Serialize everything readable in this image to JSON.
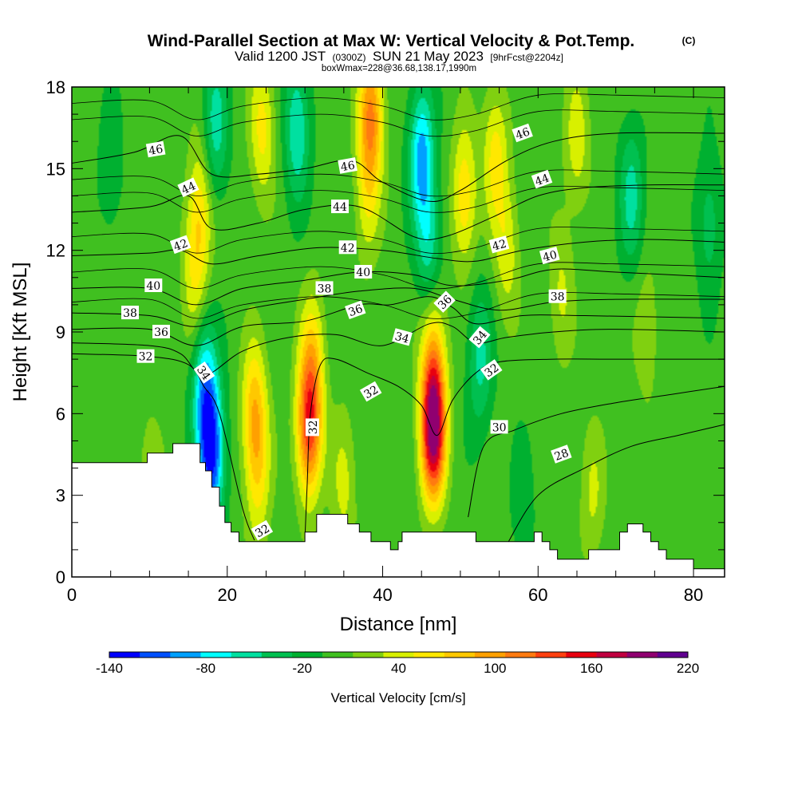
{
  "title": "Wind-Parallel Section at Max W: Vertical Velocity & Pot.Temp.",
  "copyright": "(C)",
  "subtitle_parts": {
    "valid": "Valid 1200 JST",
    "zulu": "(0300Z)",
    "date": "SUN 21 May 2023",
    "fcst": "[9hrFcst@2204z]"
  },
  "subtitle2": "boxWmax=228@36.68,138.17,1990m",
  "chart_data": {
    "type": "heatmap",
    "xlabel": "Distance [nm]",
    "ylabel": "Height [Kft MSL]",
    "xlim": [
      0,
      84
    ],
    "ylim": [
      0,
      18
    ],
    "xticks": [
      0,
      20,
      40,
      60,
      80
    ],
    "yticks": [
      0,
      3,
      6,
      9,
      12,
      15,
      18
    ],
    "colorbar": {
      "label": "Vertical Velocity [cm/s]",
      "boundaries": [
        -140,
        -120,
        -100,
        -80,
        -60,
        -40,
        -20,
        0,
        20,
        40,
        60,
        80,
        100,
        120,
        140,
        160,
        180,
        200,
        220
      ],
      "tick_labels": [
        "-140",
        "-80",
        "-20",
        "40",
        "100",
        "160",
        "220"
      ],
      "tick_values": [
        -140,
        -80,
        -20,
        40,
        100,
        160,
        220
      ],
      "colors": [
        "#0000ff",
        "#0050ff",
        "#00a0ff",
        "#00ffff",
        "#00e0a0",
        "#00c050",
        "#00b030",
        "#40c020",
        "#80d010",
        "#d8f000",
        "#ffe800",
        "#ffc800",
        "#ffa000",
        "#ff7a10",
        "#ff4010",
        "#e80010",
        "#c00040",
        "#900070",
        "#600090"
      ]
    },
    "velocity_features": [
      {
        "x": 16.5,
        "z": 13.5,
        "w": 60
      },
      {
        "x": 15.8,
        "z": 11.0,
        "w": 45
      },
      {
        "x": 18.5,
        "z": 16.5,
        "w": -60
      },
      {
        "x": 18.0,
        "z": 4.5,
        "w": -130
      },
      {
        "x": 17.0,
        "z": 7.0,
        "w": -85
      },
      {
        "x": 23.5,
        "z": 6.0,
        "w": 85
      },
      {
        "x": 24.0,
        "z": 3.5,
        "w": 45
      },
      {
        "x": 24.5,
        "z": 16.5,
        "w": 60
      },
      {
        "x": 29.0,
        "z": 16.5,
        "w": -70
      },
      {
        "x": 30.5,
        "z": 5.5,
        "w": 140
      },
      {
        "x": 31.0,
        "z": 8.0,
        "w": 60
      },
      {
        "x": 35.0,
        "z": 3.5,
        "w": 40
      },
      {
        "x": 38.5,
        "z": 17.0,
        "w": 110
      },
      {
        "x": 38.0,
        "z": 14.0,
        "w": 45
      },
      {
        "x": 45.0,
        "z": 15.5,
        "w": -95
      },
      {
        "x": 46.0,
        "z": 12.0,
        "w": -60
      },
      {
        "x": 46.5,
        "z": 5.5,
        "w": 215
      },
      {
        "x": 46.5,
        "z": 8.5,
        "w": 60
      },
      {
        "x": 52.5,
        "z": 8.0,
        "w": -55
      },
      {
        "x": 50.5,
        "z": 14.0,
        "w": 70
      },
      {
        "x": 54.5,
        "z": 15.5,
        "w": 60
      },
      {
        "x": 56.0,
        "z": 12.0,
        "w": 45
      },
      {
        "x": 63.0,
        "z": 10.5,
        "w": 35
      },
      {
        "x": 65.0,
        "z": 16.0,
        "w": 45
      },
      {
        "x": 67.0,
        "z": 3.0,
        "w": 35
      },
      {
        "x": 72.0,
        "z": 14.0,
        "w": -55
      },
      {
        "x": 74.0,
        "z": 9.0,
        "w": 30
      },
      {
        "x": 82.0,
        "z": 13.0,
        "w": -40
      },
      {
        "x": 10.0,
        "z": 3.5,
        "w": 30
      },
      {
        "x": 5.0,
        "z": 15.0,
        "w": -25
      },
      {
        "x": 58.0,
        "z": 2.5,
        "w": -20
      },
      {
        "x": 78.0,
        "z": 2.0,
        "w": 5
      }
    ],
    "terrain_kft": [
      [
        0,
        4.2
      ],
      [
        9.7,
        4.2
      ],
      [
        9.7,
        4.55
      ],
      [
        13.0,
        4.55
      ],
      [
        13.0,
        4.9
      ],
      [
        16.5,
        4.9
      ],
      [
        16.5,
        4.2
      ],
      [
        17.2,
        4.2
      ],
      [
        17.2,
        3.9
      ],
      [
        18.0,
        3.9
      ],
      [
        18.0,
        3.3
      ],
      [
        19.0,
        3.3
      ],
      [
        19.0,
        2.6
      ],
      [
        19.7,
        2.6
      ],
      [
        19.7,
        2.0
      ],
      [
        20.5,
        2.0
      ],
      [
        20.5,
        1.65
      ],
      [
        21.5,
        1.65
      ],
      [
        21.5,
        1.3
      ],
      [
        30.0,
        1.3
      ],
      [
        30.0,
        1.65
      ],
      [
        31.5,
        1.65
      ],
      [
        31.5,
        2.3
      ],
      [
        35.5,
        2.3
      ],
      [
        35.5,
        1.95
      ],
      [
        37.0,
        1.95
      ],
      [
        37.0,
        1.65
      ],
      [
        38.5,
        1.65
      ],
      [
        38.5,
        1.3
      ],
      [
        41.0,
        1.3
      ],
      [
        41.0,
        1.0
      ],
      [
        42.0,
        1.0
      ],
      [
        42.0,
        1.3
      ],
      [
        42.5,
        1.3
      ],
      [
        42.5,
        1.65
      ],
      [
        52.0,
        1.65
      ],
      [
        52.0,
        1.3
      ],
      [
        59.5,
        1.3
      ],
      [
        59.5,
        1.65
      ],
      [
        60.5,
        1.65
      ],
      [
        60.5,
        1.3
      ],
      [
        61.5,
        1.3
      ],
      [
        61.5,
        1.0
      ],
      [
        62.5,
        1.0
      ],
      [
        62.5,
        0.65
      ],
      [
        66.5,
        0.65
      ],
      [
        66.5,
        1.0
      ],
      [
        70.5,
        1.0
      ],
      [
        70.5,
        1.65
      ],
      [
        71.5,
        1.65
      ],
      [
        71.5,
        1.95
      ],
      [
        73.5,
        1.95
      ],
      [
        73.5,
        1.65
      ],
      [
        74.5,
        1.65
      ],
      [
        74.5,
        1.3
      ],
      [
        75.5,
        1.3
      ],
      [
        75.5,
        1.0
      ],
      [
        76.5,
        1.0
      ],
      [
        76.5,
        0.65
      ],
      [
        80.0,
        0.65
      ],
      [
        80.0,
        0.3
      ],
      [
        84,
        0.3
      ]
    ],
    "contours": [
      {
        "level": 28,
        "points": [
          [
            56,
            1.2
          ],
          [
            60,
            3.0
          ],
          [
            66,
            4.0
          ],
          [
            72,
            4.8
          ],
          [
            78,
            5.2
          ],
          [
            84,
            5.6
          ]
        ],
        "label": "28",
        "label_at": [
          63,
          4.5
        ],
        "angle": -20
      },
      {
        "level": 30,
        "points": [
          [
            51,
            2.2
          ],
          [
            53,
            4.8
          ],
          [
            57,
            5.4
          ],
          [
            63,
            6.0
          ],
          [
            70,
            6.4
          ],
          [
            77,
            6.7
          ],
          [
            84,
            7.0
          ]
        ],
        "label": "30",
        "label_at": [
          55,
          5.5
        ],
        "angle": 0
      },
      {
        "level": 32,
        "points": [
          [
            0,
            8.2
          ],
          [
            10,
            8.1
          ],
          [
            15,
            7.8
          ],
          [
            17,
            7.0
          ],
          [
            19,
            6.0
          ],
          [
            22,
            2.5
          ],
          [
            23.5,
            1.35
          ]
        ],
        "label": "32",
        "label_at": [
          9.5,
          8.1
        ],
        "angle": 0
      },
      {
        "level": 32,
        "points": [
          [
            30,
            1.4
          ],
          [
            30.3,
            3.5
          ],
          [
            30.7,
            6.0
          ],
          [
            32,
            7.8
          ],
          [
            34,
            8.0
          ],
          [
            38,
            7.5
          ],
          [
            42,
            7.0
          ],
          [
            45,
            6.3
          ],
          [
            47,
            5.2
          ],
          [
            49,
            6.5
          ],
          [
            52,
            7.5
          ],
          [
            55,
            7.9
          ],
          [
            62,
            8.0
          ],
          [
            70,
            8.0
          ],
          [
            84,
            8.0
          ]
        ],
        "label": "32",
        "label_at": [
          31,
          5.5
        ],
        "angle": -90
      },
      {
        "level": 34,
        "points": [
          [
            0,
            8.6
          ],
          [
            10,
            8.5
          ],
          [
            14,
            8.2
          ],
          [
            17,
            7.4
          ],
          [
            22,
            8.3
          ],
          [
            28,
            8.8
          ],
          [
            34,
            8.9
          ],
          [
            40,
            8.5
          ],
          [
            46,
            9.3
          ],
          [
            49,
            9.2
          ],
          [
            52,
            8.6
          ],
          [
            56,
            8.8
          ],
          [
            62,
            9.0
          ],
          [
            70,
            9.1
          ],
          [
            84,
            9.0
          ]
        ],
        "label": "34",
        "label_at": [
          17,
          7.5
        ],
        "angle": 55
      },
      {
        "level": 36,
        "points": [
          [
            0,
            9.1
          ],
          [
            10,
            9.1
          ],
          [
            16,
            8.5
          ],
          [
            22,
            9.2
          ],
          [
            30,
            9.4
          ],
          [
            37,
            10.0
          ],
          [
            41,
            10.0
          ],
          [
            46,
            10.3
          ],
          [
            49,
            9.9
          ],
          [
            52,
            9.3
          ],
          [
            58,
            9.6
          ],
          [
            66,
            9.6
          ],
          [
            84,
            9.5
          ]
        ],
        "label": "36",
        "label_at": [
          11.5,
          9.0
        ],
        "angle": 0
      },
      {
        "level": 38,
        "points": [
          [
            0,
            9.7
          ],
          [
            10,
            9.6
          ],
          [
            16,
            9.2
          ],
          [
            22,
            9.8
          ],
          [
            30,
            10.2
          ],
          [
            37,
            10.5
          ],
          [
            44,
            10.6
          ],
          [
            49,
            10.2
          ],
          [
            55,
            9.8
          ],
          [
            62,
            10.1
          ],
          [
            70,
            10.2
          ],
          [
            84,
            10.2
          ]
        ],
        "label": "38",
        "label_at": [
          7.5,
          9.7
        ],
        "angle": 0
      },
      {
        "level": 40,
        "points": [
          [
            0,
            10.6
          ],
          [
            10,
            10.6
          ],
          [
            16,
            10.0
          ],
          [
            22,
            10.6
          ],
          [
            30,
            10.9
          ],
          [
            37,
            11.2
          ],
          [
            44,
            11.1
          ],
          [
            49,
            10.7
          ],
          [
            56,
            10.9
          ],
          [
            62,
            11.3
          ],
          [
            70,
            11.2
          ],
          [
            84,
            11.0
          ]
        ],
        "label": "40",
        "label_at": [
          10.5,
          10.7
        ],
        "angle": 0
      },
      {
        "level": 42,
        "points": [
          [
            0,
            11.8
          ],
          [
            10,
            11.9
          ],
          [
            14,
            12.0
          ],
          [
            18,
            11.5
          ],
          [
            24,
            11.8
          ],
          [
            32,
            12.1
          ],
          [
            40,
            12.0
          ],
          [
            47,
            11.7
          ],
          [
            52,
            11.6
          ],
          [
            58,
            12.0
          ],
          [
            66,
            12.3
          ],
          [
            74,
            12.4
          ],
          [
            84,
            12.3
          ]
        ],
        "label": "42",
        "label_at": [
          14,
          12.2
        ],
        "angle": -20
      },
      {
        "level": 44,
        "points": [
          [
            0,
            13.4
          ],
          [
            10,
            13.6
          ],
          [
            15,
            14.0
          ],
          [
            18,
            12.8
          ],
          [
            24,
            13.0
          ],
          [
            30,
            13.5
          ],
          [
            37,
            13.6
          ],
          [
            44,
            12.5
          ],
          [
            48,
            12.5
          ],
          [
            54,
            13.2
          ],
          [
            60,
            14.0
          ],
          [
            66,
            14.3
          ],
          [
            74,
            14.4
          ],
          [
            84,
            14.4
          ]
        ],
        "label": "44",
        "label_at": [
          15,
          14.3
        ],
        "angle": -25
      },
      {
        "level": 46,
        "points": [
          [
            0,
            15.2
          ],
          [
            8,
            15.6
          ],
          [
            14,
            16.2
          ],
          [
            18,
            14.8
          ],
          [
            24,
            14.8
          ],
          [
            30,
            15.0
          ],
          [
            36,
            15.3
          ],
          [
            40,
            14.5
          ],
          [
            46,
            13.8
          ],
          [
            50,
            14.2
          ],
          [
            56,
            15.3
          ],
          [
            62,
            16.0
          ],
          [
            70,
            16.3
          ],
          [
            84,
            16.3
          ]
        ],
        "label": "46",
        "label_at": [
          10.8,
          15.7
        ],
        "angle": -10
      }
    ],
    "extra_labels": [
      {
        "text": "46",
        "at": [
          35.5,
          15.1
        ],
        "angle": -10
      },
      {
        "text": "44",
        "at": [
          34.5,
          13.6
        ],
        "angle": 0
      },
      {
        "text": "42",
        "at": [
          35.5,
          12.1
        ],
        "angle": 0
      },
      {
        "text": "40",
        "at": [
          37.5,
          11.2
        ],
        "angle": 0
      },
      {
        "text": "38",
        "at": [
          32.5,
          10.6
        ],
        "angle": 0
      },
      {
        "text": "36",
        "at": [
          36.5,
          9.8
        ],
        "angle": -20
      },
      {
        "text": "34",
        "at": [
          42.5,
          8.8
        ],
        "angle": 15
      },
      {
        "text": "32",
        "at": [
          38.5,
          6.8
        ],
        "angle": -30
      },
      {
        "text": "36",
        "at": [
          48,
          10.1
        ],
        "angle": -45
      },
      {
        "text": "34",
        "at": [
          52.5,
          8.8
        ],
        "angle": -50
      },
      {
        "text": "32",
        "at": [
          54,
          7.6
        ],
        "angle": -35
      },
      {
        "text": "46",
        "at": [
          58,
          16.3
        ],
        "angle": -20
      },
      {
        "text": "44",
        "at": [
          60.5,
          14.6
        ],
        "angle": -20
      },
      {
        "text": "42",
        "at": [
          55,
          12.2
        ],
        "angle": -15
      },
      {
        "text": "40",
        "at": [
          61.5,
          11.8
        ],
        "angle": -15
      },
      {
        "text": "38",
        "at": [
          62.5,
          10.3
        ],
        "angle": 0
      },
      {
        "text": "32",
        "at": [
          24.5,
          1.7
        ],
        "angle": -30
      }
    ]
  }
}
